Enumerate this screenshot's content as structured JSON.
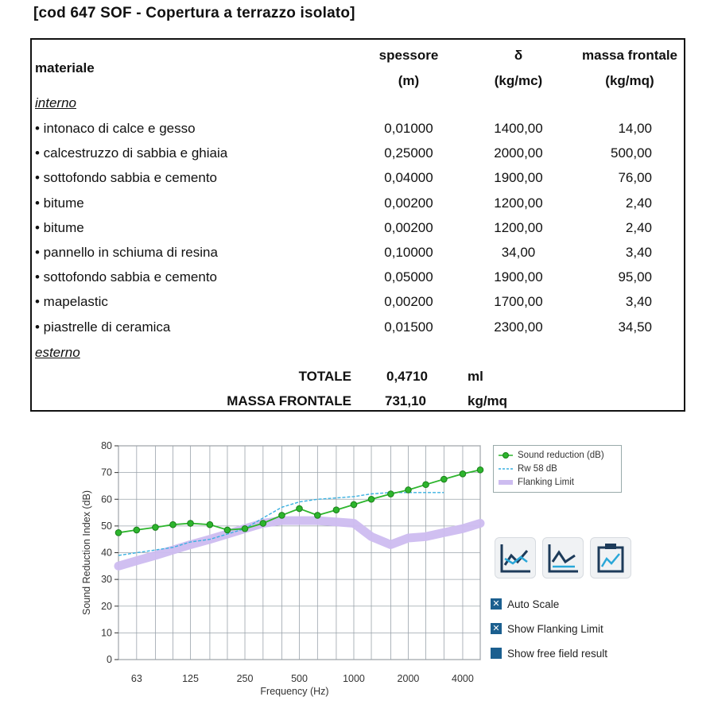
{
  "title": "[cod 647 SOF - Copertura a terrazzo isolato]",
  "table": {
    "headers": {
      "materiale": "materiale",
      "spessore": "spessore",
      "spessore_unit": "(m)",
      "delta": "δ",
      "delta_unit": "(kg/mc)",
      "massa": "massa frontale",
      "massa_unit": "(kg/mq)"
    },
    "section_top": "interno",
    "section_bottom": "esterno",
    "rows": [
      {
        "name": "• intonaco di calce e gesso",
        "spessore": "0,01000",
        "delta": "1400,00",
        "massa": "14,00"
      },
      {
        "name": "• calcestruzzo di sabbia e ghiaia",
        "spessore": "0,25000",
        "delta": "2000,00",
        "massa": "500,00"
      },
      {
        "name": "• sottofondo sabbia e cemento",
        "spessore": "0,04000",
        "delta": "1900,00",
        "massa": "76,00"
      },
      {
        "name": "• bitume",
        "spessore": "0,00200",
        "delta": "1200,00",
        "massa": "2,40"
      },
      {
        "name": "• bitume",
        "spessore": "0,00200",
        "delta": "1200,00",
        "massa": "2,40"
      },
      {
        "name": "• pannello in schiuma di resina",
        "spessore": "0,10000",
        "delta": "34,00",
        "massa": "3,40"
      },
      {
        "name": "• sottofondo sabbia e cemento",
        "spessore": "0,05000",
        "delta": "1900,00",
        "massa": "95,00"
      },
      {
        "name": "• mapelastic",
        "spessore": "0,00200",
        "delta": "1700,00",
        "massa": "3,40"
      },
      {
        "name": "• piastrelle di ceramica",
        "spessore": "0,01500",
        "delta": "2300,00",
        "massa": "34,50"
      }
    ],
    "totals": [
      {
        "label": "TOTALE",
        "value": "0,4710",
        "unit": "ml"
      },
      {
        "label": "MASSA FRONTALE",
        "value": "731,10",
        "unit": "kg/mq"
      }
    ]
  },
  "chart_data": {
    "type": "line",
    "xlabel": "Frequency (Hz)",
    "ylabel": "Sound Reduction Index (dB)",
    "x_scale": "log",
    "ylim": [
      0,
      80
    ],
    "xlim": [
      50,
      5000
    ],
    "y_ticks": [
      0,
      10,
      20,
      30,
      40,
      50,
      60,
      70,
      80
    ],
    "x_ticks": [
      63,
      125,
      250,
      500,
      1000,
      2000,
      4000
    ],
    "x_tick_labels": [
      "63",
      "125",
      "250",
      "500",
      "1000",
      "2000",
      "4000"
    ],
    "grid": true,
    "legend_position": "right",
    "series": [
      {
        "name": "Sound reduction (dB)",
        "color": "#2db52d",
        "marker": "circle",
        "x": [
          50,
          63,
          80,
          100,
          125,
          160,
          200,
          250,
          315,
          400,
          500,
          630,
          800,
          1000,
          1250,
          1600,
          2000,
          2500,
          3150,
          4000,
          5000
        ],
        "y": [
          47.5,
          48.5,
          49.5,
          50.5,
          51,
          50.5,
          48.5,
          49,
          51,
          54,
          56.5,
          54,
          56,
          58,
          60,
          62,
          63.5,
          65.5,
          67.5,
          69.5,
          71
        ]
      },
      {
        "name": "Rw 58 dB",
        "color": "#3ab0e0",
        "style": "dashed",
        "x": [
          50,
          63,
          80,
          100,
          125,
          160,
          200,
          250,
          315,
          400,
          500,
          630,
          800,
          1000,
          1250,
          1600,
          2000,
          2500,
          3150
        ],
        "y": [
          39,
          40,
          41,
          42,
          44,
          45,
          47,
          49,
          53,
          57,
          59,
          60,
          60.5,
          61,
          62,
          62.5,
          62.5,
          62.5,
          62.5
        ]
      },
      {
        "name": "Flanking Limit",
        "color": "#cdbcf0",
        "style": "thick",
        "x": [
          50,
          63,
          80,
          100,
          125,
          160,
          200,
          250,
          315,
          400,
          500,
          630,
          800,
          1000,
          1250,
          1600,
          2000,
          2500,
          3150,
          4000,
          5000
        ],
        "y": [
          35,
          37,
          39,
          41,
          43,
          45,
          47,
          49,
          51,
          52,
          52,
          52,
          51.5,
          51,
          46,
          43,
          45.5,
          46,
          47.5,
          49,
          51
        ]
      }
    ]
  },
  "legend": {
    "items": [
      {
        "label": "Sound reduction (dB)"
      },
      {
        "label": "Rw 58 dB"
      },
      {
        "label": "Flanking Limit"
      }
    ]
  },
  "tools": [
    {
      "icon": "chart-line-icon"
    },
    {
      "icon": "chart-compare-icon"
    },
    {
      "icon": "chart-export-icon"
    }
  ],
  "options": [
    {
      "label": "Auto Scale",
      "checked": true
    },
    {
      "label": "Show Flanking Limit",
      "checked": true
    },
    {
      "label": "Show free field result",
      "checked": false
    }
  ]
}
